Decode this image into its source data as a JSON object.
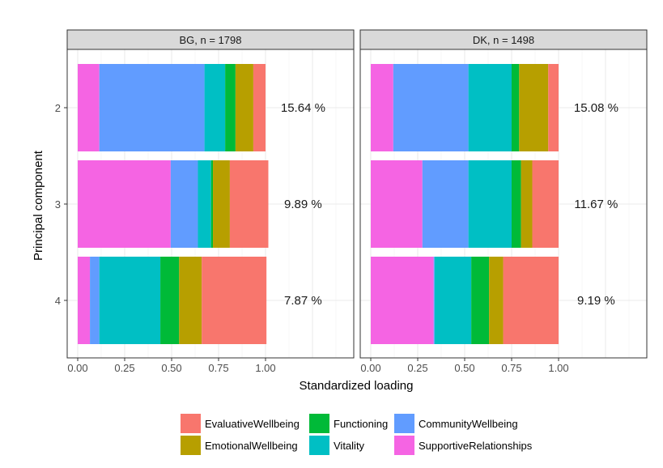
{
  "chart_data": {
    "type": "bar",
    "orientation": "horizontal",
    "stacked": true,
    "xlabel": "Standardized loading",
    "ylabel": "Principal component",
    "xlim": [
      0,
      1.5
    ],
    "xticks": [
      "0.00",
      "0.25",
      "0.50",
      "0.75",
      "1.00"
    ],
    "categories": [
      "2",
      "3",
      "4"
    ],
    "series_order": [
      "SupportiveRelationships",
      "CommunityWellbeing",
      "Vitality",
      "Functioning",
      "EmotionalWellbeing",
      "EvaluativeWellbeing"
    ],
    "colors": {
      "EvaluativeWellbeing": "#F8766D",
      "EmotionalWellbeing": "#B79F00",
      "Functioning": "#00BA38",
      "Vitality": "#00BFC4",
      "CommunityWellbeing": "#619CFF",
      "SupportiveRelationships": "#F564E3"
    },
    "legend": {
      "position": "bottom",
      "items": [
        "EvaluativeWellbeing",
        "EmotionalWellbeing",
        "Functioning",
        "Vitality",
        "CommunityWellbeing",
        "SupportiveRelationships"
      ]
    },
    "grid": true,
    "panels": [
      {
        "title": "BG, n = 1798",
        "bars": [
          {
            "component": "2",
            "label": "15.64 %",
            "values": {
              "SupportiveRelationships": 0.115,
              "CommunityWellbeing": 0.56,
              "Vitality": 0.11,
              "Functioning": 0.055,
              "EmotionalWellbeing": 0.095,
              "EvaluativeWellbeing": 0.065
            }
          },
          {
            "component": "3",
            "label": "9.89 %",
            "values": {
              "SupportiveRelationships": 0.495,
              "CommunityWellbeing": 0.145,
              "Vitality": 0.07,
              "Functioning": 0.01,
              "EmotionalWellbeing": 0.09,
              "EvaluativeWellbeing": 0.205
            }
          },
          {
            "component": "4",
            "label": "7.87 %",
            "values": {
              "SupportiveRelationships": 0.065,
              "CommunityWellbeing": 0.05,
              "Vitality": 0.325,
              "Functioning": 0.1,
              "EmotionalWellbeing": 0.12,
              "EvaluativeWellbeing": 0.345
            }
          }
        ]
      },
      {
        "title": "DK, n = 1498",
        "bars": [
          {
            "component": "2",
            "label": "15.08 %",
            "values": {
              "SupportiveRelationships": 0.12,
              "CommunityWellbeing": 0.4,
              "Vitality": 0.23,
              "Functioning": 0.04,
              "EmotionalWellbeing": 0.155,
              "EvaluativeWellbeing": 0.055
            }
          },
          {
            "component": "3",
            "label": "11.67 %",
            "values": {
              "SupportiveRelationships": 0.275,
              "CommunityWellbeing": 0.245,
              "Vitality": 0.23,
              "Functioning": 0.05,
              "EmotionalWellbeing": 0.06,
              "EvaluativeWellbeing": 0.14
            }
          },
          {
            "component": "4",
            "label": "9.19 %",
            "values": {
              "SupportiveRelationships": 0.335,
              "CommunityWellbeing": 0.005,
              "Vitality": 0.195,
              "Functioning": 0.095,
              "EmotionalWellbeing": 0.075,
              "EvaluativeWellbeing": 0.295
            }
          }
        ]
      }
    ]
  }
}
